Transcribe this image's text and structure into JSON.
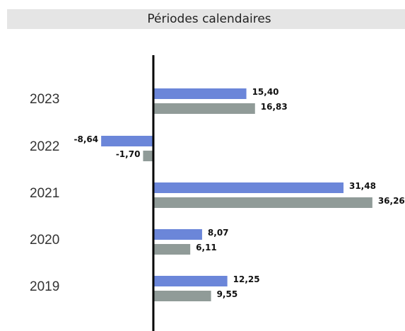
{
  "chart_data": {
    "type": "hbar",
    "title": "Périodes calendaires",
    "categories": [
      "2023",
      "2022",
      "2021",
      "2020",
      "2019"
    ],
    "series": [
      {
        "color": "#6b86d9",
        "values": [
          15.4,
          -8.64,
          31.48,
          8.07,
          12.25
        ],
        "value_labels": [
          "15,40",
          "-8,64",
          "31,48",
          "8,07",
          "12,25"
        ]
      },
      {
        "color": "#909b98",
        "values": [
          16.83,
          -1.7,
          36.26,
          6.11,
          9.55
        ],
        "value_labels": [
          "16,83",
          "-1,70",
          "36,26",
          "6,11",
          "9,55"
        ]
      }
    ],
    "xlim": [
      -10,
      40
    ]
  }
}
